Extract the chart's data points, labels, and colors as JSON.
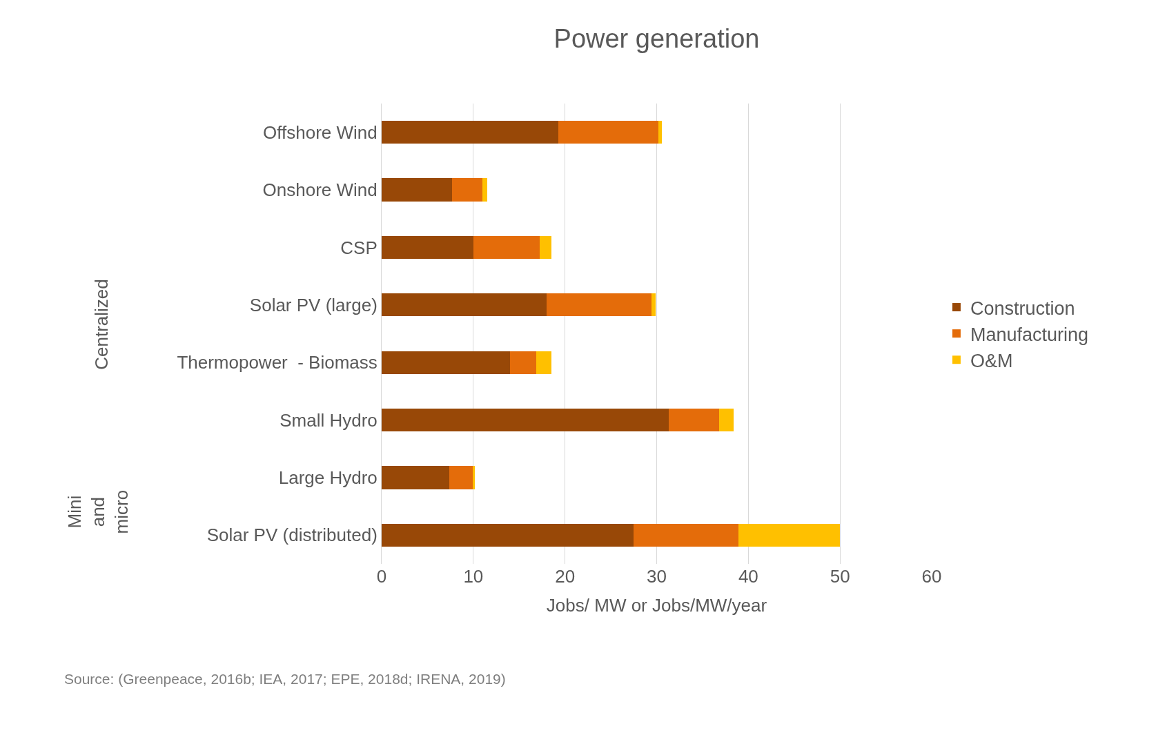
{
  "chart_data": {
    "type": "bar",
    "orientation": "horizontal",
    "stacked": true,
    "title": "Power generation",
    "xlabel": "Jobs/ MW or Jobs/MW/year",
    "categories": [
      "Offshore Wind",
      "Onshore Wind",
      "CSP",
      "Solar PV (large)",
      "Thermopower  - Biomass",
      "Small Hydro",
      "Large Hydro",
      "Solar PV (distributed)"
    ],
    "series": [
      {
        "name": "Construction",
        "color": "#984807",
        "values": [
          19.25,
          7.7,
          10.0,
          18.0,
          14.0,
          31.3,
          7.4,
          27.5
        ]
      },
      {
        "name": "Manufacturing",
        "color": "#e46c0a",
        "values": [
          10.95,
          3.3,
          7.25,
          11.45,
          2.9,
          5.5,
          2.5,
          11.4
        ]
      },
      {
        "name": "O&M",
        "color": "#ffc000",
        "values": [
          0.35,
          0.5,
          1.25,
          0.45,
          1.6,
          1.6,
          0.3,
          11.1
        ]
      }
    ],
    "xlim": [
      0,
      60
    ],
    "xticks": [
      0,
      10,
      20,
      30,
      40,
      50,
      60
    ],
    "grid": "x",
    "legend": "right",
    "annotations": [
      "Centralized",
      "Mini and micro",
      "Source: (Greenpeace, 2016b; IEA, 2017; EPE, 2018d; IRENA, 2019)"
    ]
  }
}
